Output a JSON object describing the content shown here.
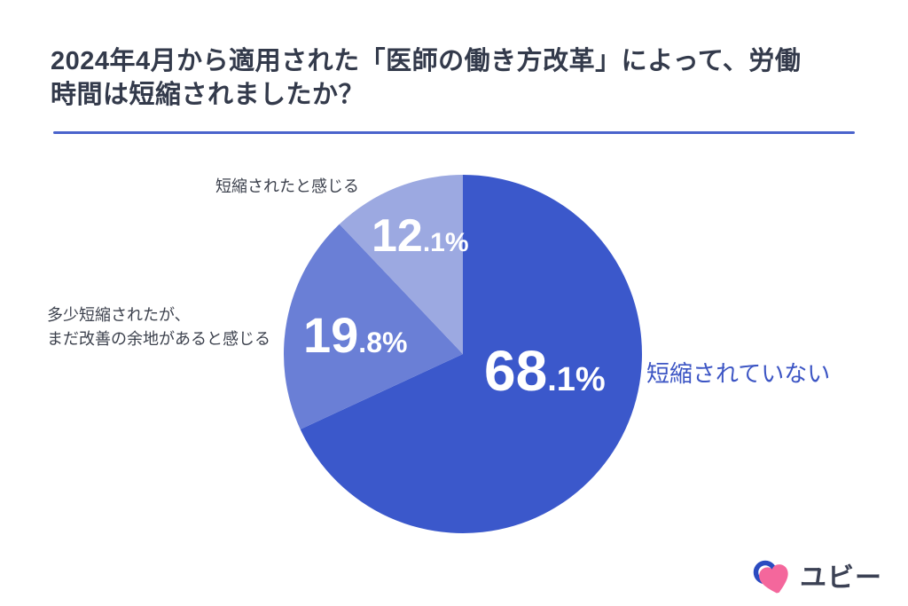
{
  "header": {
    "title_lines": [
      "2024年4月から適用された「医師の働き方改革」によって、労働",
      "時間は短縮されましたか？"
    ],
    "title_color": "#333a4b",
    "divider_color": "#4a63cc"
  },
  "chart_data": {
    "type": "pie",
    "title": "2024年4月から適用された「医師の働き方改革」によって、労働時間は短縮されましたか？",
    "unit": "%",
    "start_angle_deg": 0,
    "direction": "clockwise",
    "legend_position": "outside-labels",
    "slices": [
      {
        "label": "短縮されていない",
        "value": 68.1,
        "color": "#3b58cb"
      },
      {
        "label": "多少短縮されたが、まだ改善の余地があると感じる",
        "value": 19.8,
        "color": "#6a7fd6"
      },
      {
        "label": "短縮されたと感じる",
        "value": 12.1,
        "color": "#9ca9e1"
      }
    ]
  },
  "callouts": {
    "right": "短縮されていない",
    "top": "短縮されたと感じる",
    "left_line1": "多少短縮されたが、",
    "left_line2": "まだ改善の余地があると感じる"
  },
  "branding": {
    "logo_text": "ユビー",
    "logo_text_color": "#3b4154",
    "heart_color": "#f4679c",
    "ring_color": "#2b4bc0"
  }
}
